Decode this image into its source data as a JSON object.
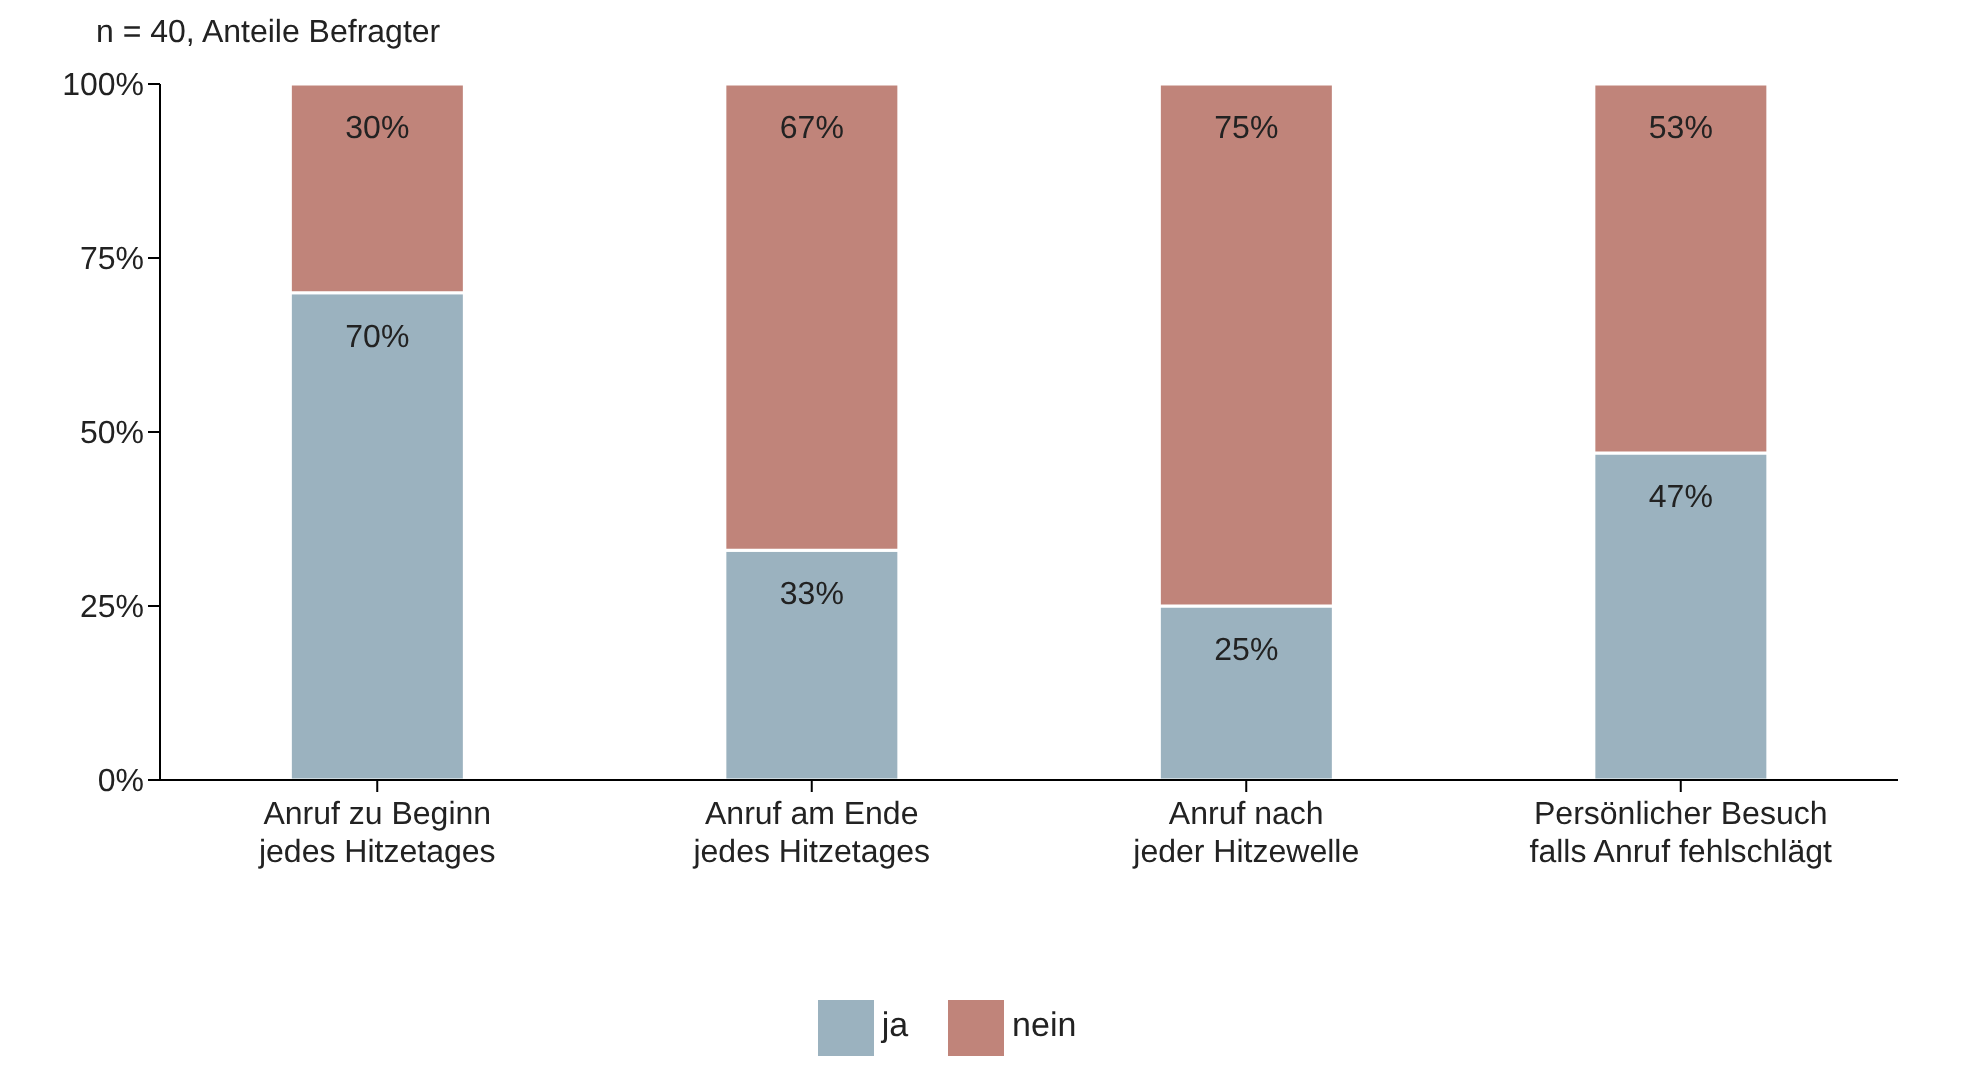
{
  "chart_data": {
    "type": "bar",
    "subtitle": "n = 40, Anteile Befragter",
    "categories": [
      "Anruf zu Beginn\njedes Hitzetages",
      "Anruf am Ende\njedes Hitzetages",
      "Anruf nach\njeder Hitzewelle",
      "Persönlicher Besuch\nfalls Anruf fehlschlägt"
    ],
    "series": [
      {
        "name": "ja",
        "color": "#9bb2bf",
        "values": [
          70,
          33,
          25,
          47
        ],
        "value_labels": [
          "70%",
          "33%",
          "25%",
          "47%"
        ]
      },
      {
        "name": "nein",
        "color": "#c0847a",
        "values": [
          30,
          67,
          75,
          53
        ],
        "value_labels": [
          "30%",
          "67%",
          "75%",
          "53%"
        ]
      }
    ],
    "stacked": true,
    "ylim": [
      0,
      100
    ],
    "yticks": [
      {
        "value": 0,
        "label": "0%"
      },
      {
        "value": 25,
        "label": "25%"
      },
      {
        "value": 50,
        "label": "50%"
      },
      {
        "value": 75,
        "label": "75%"
      },
      {
        "value": 100,
        "label": "100%"
      }
    ],
    "grid": false,
    "legend": "bottom"
  }
}
